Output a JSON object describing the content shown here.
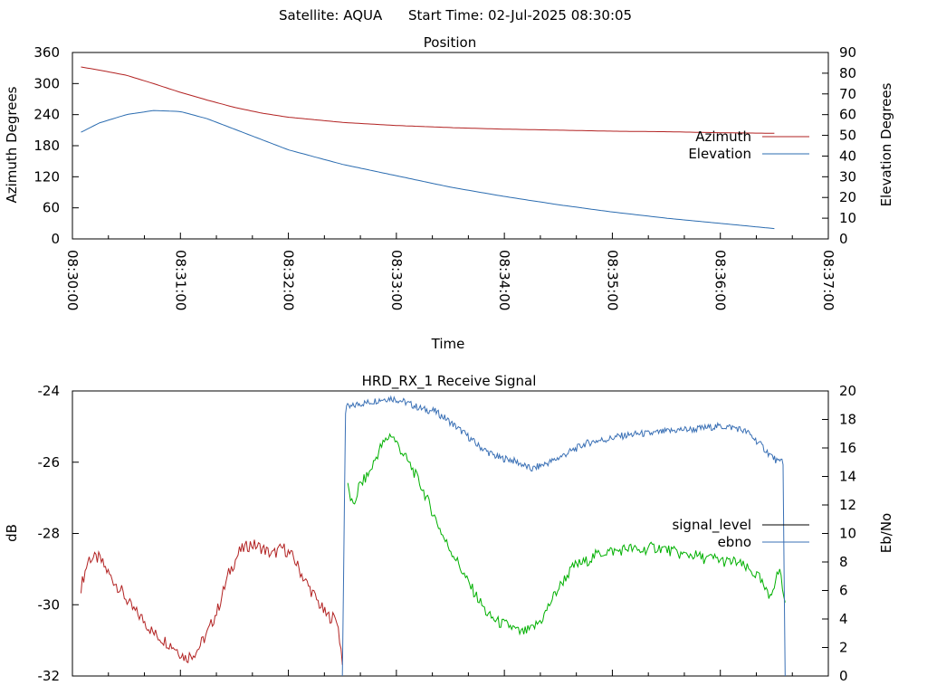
{
  "header": {
    "satellite": "Satellite: AQUA",
    "start_time": "Start Time: 02-Jul-2025 08:30:05"
  },
  "colors": {
    "azimuth": "#b22222",
    "elevation": "#2b6cb0",
    "signal_strong": "#00b000",
    "ebno": "#3a70b5",
    "legend_signal": "#000000",
    "grid_frame": "#000000"
  },
  "chart_data": [
    {
      "type": "line",
      "title": "Position",
      "xlabel": "Time",
      "ylabel": "Azimuth Degrees",
      "y2label": "Elevation Degrees",
      "xlim": [
        "08:30:00",
        "08:37:00"
      ],
      "ylim": [
        0,
        360
      ],
      "y2lim": [
        0,
        90
      ],
      "x_ticks": [
        "08:30:00",
        "08:31:00",
        "08:32:00",
        "08:33:00",
        "08:34:00",
        "08:35:00",
        "08:36:00",
        "08:37:00"
      ],
      "y_ticks": [
        0,
        60,
        120,
        180,
        240,
        300,
        360
      ],
      "y2_ticks": [
        0,
        10,
        20,
        30,
        40,
        50,
        60,
        70,
        80,
        90
      ],
      "grid": false,
      "legend_position": "right",
      "x_unit": "minutes after 08:30:00",
      "series": [
        {
          "name": "Azimuth",
          "axis": "left",
          "x": [
            0.08,
            0.25,
            0.5,
            0.75,
            1.0,
            1.25,
            1.5,
            1.75,
            2.0,
            2.5,
            3.0,
            3.5,
            4.0,
            4.5,
            5.0,
            5.5,
            6.0,
            6.5
          ],
          "values": [
            332,
            326,
            316,
            300,
            283,
            268,
            254,
            243,
            235,
            225,
            219,
            215,
            212,
            210,
            208,
            207,
            205,
            204
          ]
        },
        {
          "name": "Elevation",
          "axis": "right",
          "x": [
            0.08,
            0.25,
            0.5,
            0.75,
            1.0,
            1.25,
            1.5,
            1.75,
            2.0,
            2.5,
            3.0,
            3.5,
            4.0,
            4.5,
            5.0,
            5.5,
            6.0,
            6.5
          ],
          "values": [
            51.5,
            56,
            60,
            62,
            61.5,
            58,
            53,
            48,
            43,
            36,
            30.5,
            25,
            20.5,
            16.5,
            13,
            10,
            7.5,
            5
          ]
        }
      ]
    },
    {
      "type": "line",
      "title": "HRD_RX_1 Receive Signal",
      "ylabel": "dB",
      "y2label": "Eb/No",
      "xlim": [
        0,
        7
      ],
      "ylim": [
        -32,
        -24
      ],
      "y2lim": [
        0,
        20
      ],
      "y_ticks": [
        -32,
        -30,
        -28,
        -26,
        -24
      ],
      "y2_ticks": [
        0,
        2,
        4,
        6,
        8,
        10,
        12,
        14,
        16,
        18,
        20
      ],
      "grid": false,
      "legend_position": "right",
      "x_unit": "minutes after 08:30:00",
      "series": [
        {
          "name": "signal_level",
          "axis": "left",
          "lock_at": 2.52,
          "x": [
            0.08,
            0.15,
            0.25,
            0.35,
            0.45,
            0.55,
            0.65,
            0.75,
            0.85,
            0.95,
            1.05,
            1.15,
            1.25,
            1.35,
            1.45,
            1.55,
            1.65,
            1.75,
            1.85,
            1.95,
            2.05,
            2.15,
            2.25,
            2.35,
            2.45,
            2.52,
            2.55,
            2.6,
            2.65,
            2.75,
            2.85,
            2.95,
            3.05,
            3.15,
            3.25,
            3.35,
            3.45,
            3.55,
            3.65,
            3.75,
            3.85,
            3.95,
            4.05,
            4.15,
            4.25,
            4.35,
            4.45,
            4.55,
            4.65,
            4.75,
            4.85,
            4.95,
            5.05,
            5.15,
            5.25,
            5.35,
            5.45,
            5.55,
            5.65,
            5.75,
            5.85,
            5.95,
            6.05,
            6.15,
            6.25,
            6.35,
            6.45,
            6.55,
            6.6
          ],
          "values": [
            -29.5,
            -28.7,
            -28.7,
            -29.2,
            -29.6,
            -30.1,
            -30.4,
            -30.8,
            -31.0,
            -31.2,
            -31.5,
            -31.3,
            -30.8,
            -30.1,
            -29.1,
            -28.5,
            -28.3,
            -28.4,
            -28.6,
            -28.4,
            -28.7,
            -29.3,
            -29.8,
            -30.3,
            -30.4,
            -32.0,
            -26.7,
            -27.3,
            -26.7,
            -26.3,
            -25.6,
            -25.2,
            -25.7,
            -26.2,
            -26.8,
            -27.5,
            -28.2,
            -28.7,
            -29.3,
            -29.8,
            -30.3,
            -30.5,
            -30.6,
            -30.8,
            -30.7,
            -30.4,
            -29.8,
            -29.3,
            -28.9,
            -28.8,
            -28.6,
            -28.5,
            -28.5,
            -28.4,
            -28.5,
            -28.4,
            -28.4,
            -28.5,
            -28.6,
            -28.6,
            -28.7,
            -28.7,
            -28.8,
            -28.8,
            -29.0,
            -29.2,
            -29.8,
            -29.0,
            -30.0
          ]
        },
        {
          "name": "ebno",
          "axis": "right",
          "x": [
            2.5,
            2.53,
            2.56,
            2.65,
            2.75,
            2.85,
            2.95,
            3.05,
            3.15,
            3.25,
            3.35,
            3.45,
            3.55,
            3.65,
            3.75,
            3.85,
            3.95,
            4.05,
            4.15,
            4.25,
            4.35,
            4.45,
            4.55,
            4.65,
            4.75,
            4.85,
            4.95,
            5.05,
            5.15,
            5.25,
            5.35,
            5.45,
            5.55,
            5.65,
            5.75,
            5.85,
            5.95,
            6.05,
            6.15,
            6.25,
            6.35,
            6.45,
            6.55,
            6.58,
            6.6
          ],
          "values": [
            0,
            19.0,
            18.8,
            19.1,
            19.2,
            19.4,
            19.5,
            19.3,
            19.0,
            18.7,
            18.6,
            18.1,
            17.5,
            16.9,
            16.2,
            15.7,
            15.3,
            15.2,
            14.9,
            14.5,
            14.8,
            15.1,
            15.5,
            15.9,
            16.3,
            16.5,
            16.6,
            16.8,
            16.9,
            17.0,
            17.0,
            17.1,
            17.2,
            17.3,
            17.3,
            17.4,
            17.5,
            17.5,
            17.4,
            17.1,
            16.4,
            15.6,
            14.9,
            15.4,
            0
          ]
        }
      ]
    }
  ]
}
